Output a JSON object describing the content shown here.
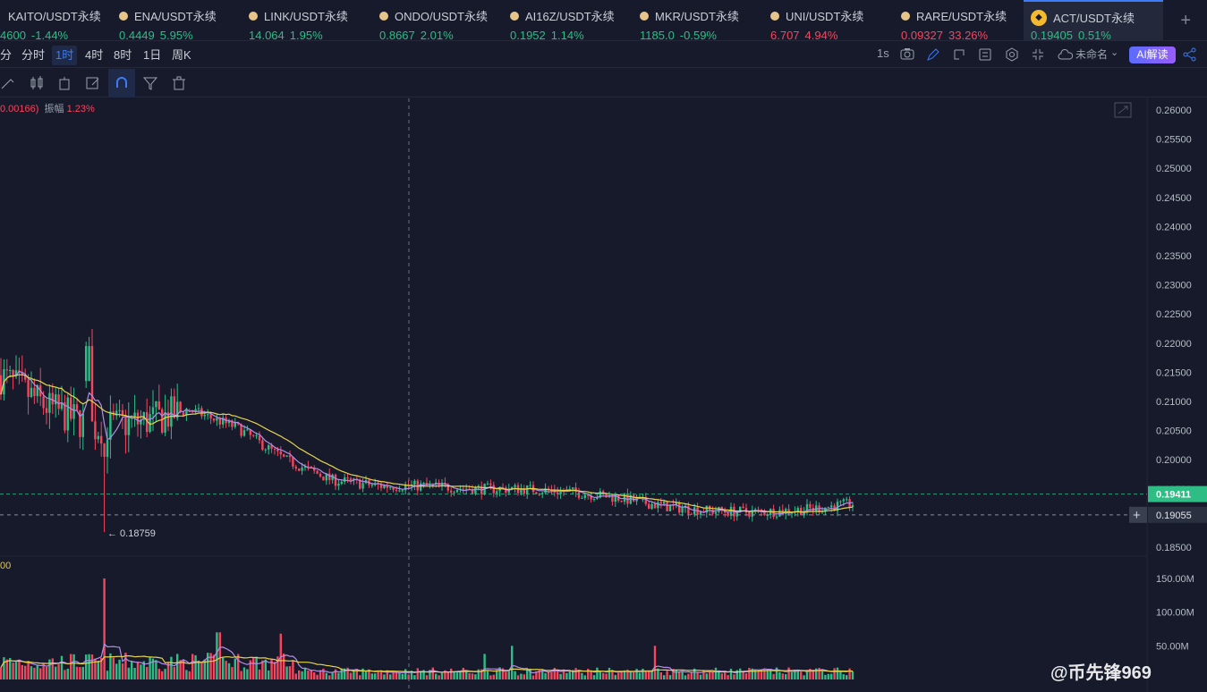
{
  "tickers": [
    {
      "symbol": "KAITO/USDT永续",
      "price": "4600",
      "change": "-1.44%",
      "dir": "up",
      "left": 0,
      "dot": false
    },
    {
      "symbol": "ENA/USDT永续",
      "price": "0.4449",
      "change": "5.95%",
      "dir": "up"
    },
    {
      "symbol": "LINK/USDT永续",
      "price": "14.064",
      "change": "1.95%",
      "dir": "up"
    },
    {
      "symbol": "ONDO/USDT永续",
      "price": "0.8667",
      "change": "2.01%",
      "dir": "up"
    },
    {
      "symbol": "AI16Z/USDT永续",
      "price": "0.1952",
      "change": "1.14%",
      "dir": "up"
    },
    {
      "symbol": "MKR/USDT永续",
      "price": "1185.0",
      "change": "-0.59%",
      "dir": "up"
    },
    {
      "symbol": "UNI/USDT永续",
      "price": "6.707",
      "change": "4.94%",
      "dir": "down"
    },
    {
      "symbol": "RARE/USDT永续",
      "price": "0.09327",
      "change": "33.26%",
      "dir": "down"
    },
    {
      "symbol": "ACT/USDT永续",
      "price": "0.19405",
      "change": "0.51%",
      "dir": "up"
    }
  ],
  "intervals": [
    "分",
    "分时",
    "1时",
    "4时",
    "8时",
    "1日",
    "周K"
  ],
  "active_interval": "1时",
  "toolbar_right": {
    "speed": "1s",
    "layout_name": "未命名",
    "ai_label": "AI解读"
  },
  "ohlc_info": {
    "prefix": "0.00166)",
    "amp_label": "振幅",
    "amp_value": "1.23%"
  },
  "vol_ma_label": "00",
  "price_axis": {
    "ticks": [
      "0.26000",
      "0.25500",
      "0.25000",
      "0.24500",
      "0.24000",
      "0.23500",
      "0.23000",
      "0.22500",
      "0.22000",
      "0.21500",
      "0.21000",
      "0.20500",
      "0.20000",
      "0.19500",
      "0.19000",
      "0.18500"
    ],
    "current_price": "0.19411",
    "crosshair_price": "0.19055",
    "low_marker": "← 0.18759"
  },
  "volume_axis": {
    "ticks": [
      "150.00M",
      "100.00M",
      "50.00M"
    ]
  },
  "watermark": "@币先锋969",
  "colors": {
    "up": "#2ebd85",
    "down": "#f6465d",
    "ma1": "#e8d44d",
    "ma2": "#b48ee6",
    "bg": "#161a2b"
  },
  "chart_data": {
    "type": "candlestick",
    "price_range": [
      0.185,
      0.26
    ],
    "volume_range": [
      0,
      150000000
    ],
    "last_price": 0.19411,
    "low": 0.18759,
    "ma_trend": [
      0.2145,
      0.209,
      0.2055,
      0.2065,
      0.2085,
      0.2055,
      0.2,
      0.1965,
      0.1955,
      0.1955,
      0.195,
      0.195,
      0.1945,
      0.1935,
      0.192,
      0.1912,
      0.191,
      0.1915,
      0.1925
    ]
  }
}
